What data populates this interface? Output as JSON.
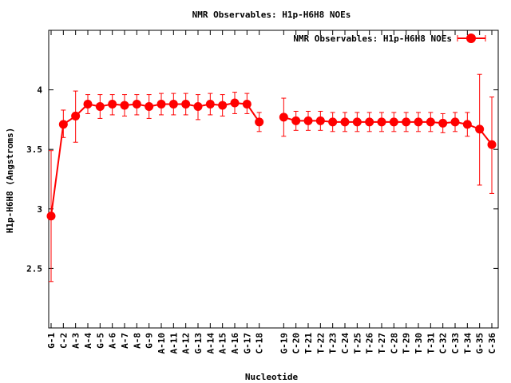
{
  "chart_data": {
    "type": "line",
    "title": "NMR Observables: H1p-H6H8 NOEs",
    "xlabel": "Nucleotide",
    "ylabel": "H1p-H6H8 (Angstroms)",
    "ylim": [
      2.0,
      4.5
    ],
    "yticks": [
      "2.5",
      "3",
      "3.5",
      "4"
    ],
    "grid": false,
    "legend_position": "top-right",
    "categories": [
      "G-1",
      "C-2",
      "A-3",
      "A-4",
      "G-5",
      "A-6",
      "A-7",
      "A-8",
      "G-9",
      "A-10",
      "A-11",
      "A-12",
      "G-13",
      "A-14",
      "A-15",
      "A-16",
      "G-17",
      "C-18",
      "G-19",
      "C-20",
      "T-21",
      "T-22",
      "T-23",
      "C-24",
      "T-25",
      "T-26",
      "T-27",
      "C-28",
      "T-29",
      "T-30",
      "T-31",
      "C-32",
      "C-33",
      "T-34",
      "G-35",
      "C-36"
    ],
    "x_positions": [
      1,
      2,
      3,
      4,
      5,
      6,
      7,
      8,
      9,
      10,
      11,
      12,
      13,
      14,
      15,
      16,
      17,
      18,
      20,
      21,
      22,
      23,
      24,
      25,
      26,
      27,
      28,
      29,
      30,
      31,
      32,
      33,
      34,
      35,
      36,
      37
    ],
    "xlim": [
      1,
      37
    ],
    "series": [
      {
        "name": "NMR Observables: H1p-H6H8 NOEs",
        "color": "#ff0000",
        "segments": [
          [
            0,
            17
          ],
          [
            18,
            35
          ]
        ],
        "values": [
          2.94,
          3.71,
          3.78,
          3.88,
          3.86,
          3.88,
          3.87,
          3.88,
          3.86,
          3.88,
          3.88,
          3.88,
          3.86,
          3.88,
          3.87,
          3.89,
          3.88,
          3.73,
          3.77,
          3.74,
          3.74,
          3.74,
          3.73,
          3.73,
          3.73,
          3.73,
          3.73,
          3.73,
          3.73,
          3.73,
          3.73,
          3.72,
          3.73,
          3.71,
          3.67,
          3.54
        ],
        "err_low": [
          2.39,
          3.6,
          3.56,
          3.8,
          3.76,
          3.79,
          3.78,
          3.79,
          3.76,
          3.79,
          3.79,
          3.79,
          3.75,
          3.79,
          3.78,
          3.8,
          3.8,
          3.65,
          3.61,
          3.66,
          3.66,
          3.66,
          3.65,
          3.65,
          3.65,
          3.65,
          3.65,
          3.65,
          3.65,
          3.65,
          3.65,
          3.64,
          3.65,
          3.61,
          3.2,
          3.13
        ],
        "err_high": [
          3.49,
          3.83,
          3.99,
          3.96,
          3.96,
          3.96,
          3.96,
          3.96,
          3.96,
          3.97,
          3.97,
          3.97,
          3.96,
          3.97,
          3.96,
          3.98,
          3.97,
          3.81,
          3.93,
          3.82,
          3.82,
          3.82,
          3.81,
          3.81,
          3.81,
          3.81,
          3.81,
          3.81,
          3.81,
          3.81,
          3.81,
          3.8,
          3.81,
          3.81,
          4.13,
          3.94
        ]
      }
    ]
  }
}
